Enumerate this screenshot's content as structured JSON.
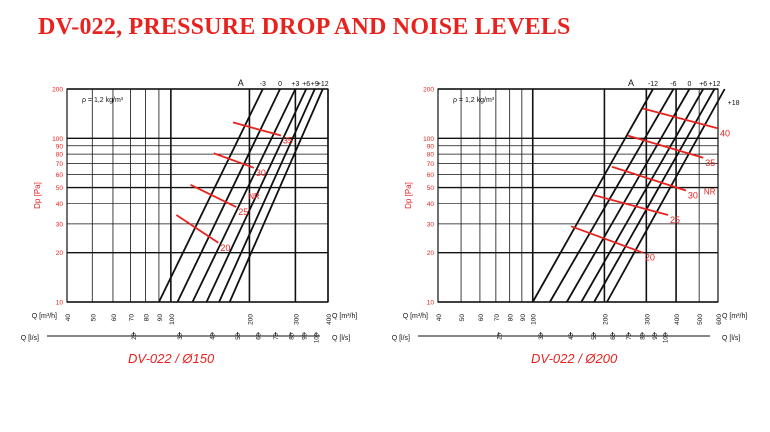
{
  "title": "DV-022, PRESSURE DROP AND NOISE LEVELS",
  "colors": {
    "title": "#e8231f",
    "accent": "#e8231f",
    "grid": "#000000",
    "lines": "#111111"
  },
  "chart_data": [
    {
      "type": "line",
      "caption": "DV-022 / Ø150",
      "density_note": "ρ = 1,2 kg/m³",
      "ylabel": "Dp [Pa]",
      "xlabel_top": "Q [m³/h]",
      "xlabel_bottom": "Q [l/s]",
      "x_scale": "log",
      "y_scale": "log",
      "xlim": [
        40,
        400
      ],
      "ylim": [
        10,
        200
      ],
      "x_ticks_m3h": [
        "40",
        "50",
        "60",
        "70",
        "80",
        "90",
        "100",
        "200",
        "300",
        "400"
      ],
      "x_ticks_ls": [
        "20",
        "30",
        "40",
        "50",
        "60",
        "70",
        "80",
        "90",
        "100"
      ],
      "y_ticks": [
        "10",
        "20",
        "30",
        "40",
        "50",
        "60",
        "70",
        "80",
        "90",
        "100",
        "200"
      ],
      "damper_label": "A",
      "nr_label": "NR",
      "series": [
        {
          "name": "-3",
          "x": [
            90,
            225
          ],
          "y": [
            10,
            200
          ]
        },
        {
          "name": "0",
          "x": [
            106,
            262
          ],
          "y": [
            10,
            200
          ]
        },
        {
          "name": "+3",
          "x": [
            121,
            300
          ],
          "y": [
            10,
            200
          ]
        },
        {
          "name": "+6",
          "x": [
            137,
            330
          ],
          "y": [
            10,
            200
          ]
        },
        {
          "name": "+9",
          "x": [
            153,
            356
          ],
          "y": [
            10,
            200
          ]
        },
        {
          "name": "+12",
          "x": [
            168,
            382
          ],
          "y": [
            10,
            200
          ]
        }
      ],
      "noise_lines": [
        {
          "name": "20",
          "x": [
            105,
            152
          ],
          "y": [
            34,
            23
          ]
        },
        {
          "name": "25",
          "x": [
            119,
            178
          ],
          "y": [
            52,
            38
          ]
        },
        {
          "name": "30",
          "x": [
            146,
            208
          ],
          "y": [
            81,
            66
          ]
        },
        {
          "name": "35",
          "x": [
            173,
            264
          ],
          "y": [
            125,
            104
          ]
        }
      ]
    },
    {
      "type": "line",
      "caption": "DV-022 / Ø200",
      "density_note": "ρ = 1,2 kg/m³",
      "ylabel": "Dp [Pa]",
      "xlabel_top": "Q [m³/h]",
      "xlabel_bottom": "Q [l/s]",
      "x_scale": "log",
      "y_scale": "log",
      "xlim": [
        40,
        600
      ],
      "ylim": [
        10,
        200
      ],
      "x_ticks_m3h": [
        "40",
        "50",
        "60",
        "70",
        "80",
        "90",
        "100",
        "200",
        "300",
        "400",
        "500",
        "600"
      ],
      "x_ticks_ls": [
        "20",
        "30",
        "40",
        "50",
        "60",
        "70",
        "80",
        "90",
        "100"
      ],
      "y_ticks": [
        "10",
        "20",
        "30",
        "40",
        "50",
        "60",
        "70",
        "80",
        "90",
        "100",
        "200"
      ],
      "damper_label": "A",
      "nr_label": "NR",
      "series": [
        {
          "name": "-12",
          "x": [
            100,
            320
          ],
          "y": [
            10,
            200
          ]
        },
        {
          "name": "-6",
          "x": [
            118,
            390
          ],
          "y": [
            10,
            200
          ]
        },
        {
          "name": "0",
          "x": [
            139,
            455
          ],
          "y": [
            10,
            200
          ]
        },
        {
          "name": "+6",
          "x": [
            160,
            520
          ],
          "y": [
            10,
            200
          ]
        },
        {
          "name": "+12",
          "x": [
            181,
            580
          ],
          "y": [
            10,
            200
          ]
        },
        {
          "name": "+18",
          "x": [
            205,
            640
          ],
          "y": [
            10,
            200
          ]
        }
      ],
      "noise_lines": [
        {
          "name": "20",
          "x": [
            145,
            290
          ],
          "y": [
            29,
            20
          ]
        },
        {
          "name": "25",
          "x": [
            180,
            370
          ],
          "y": [
            45,
            34
          ]
        },
        {
          "name": "30",
          "x": [
            215,
            440
          ],
          "y": [
            67,
            48
          ]
        },
        {
          "name": "35",
          "x": [
            250,
            520
          ],
          "y": [
            104,
            76
          ]
        },
        {
          "name": "40",
          "x": [
            290,
            600
          ],
          "y": [
            152,
            115
          ]
        }
      ]
    }
  ]
}
